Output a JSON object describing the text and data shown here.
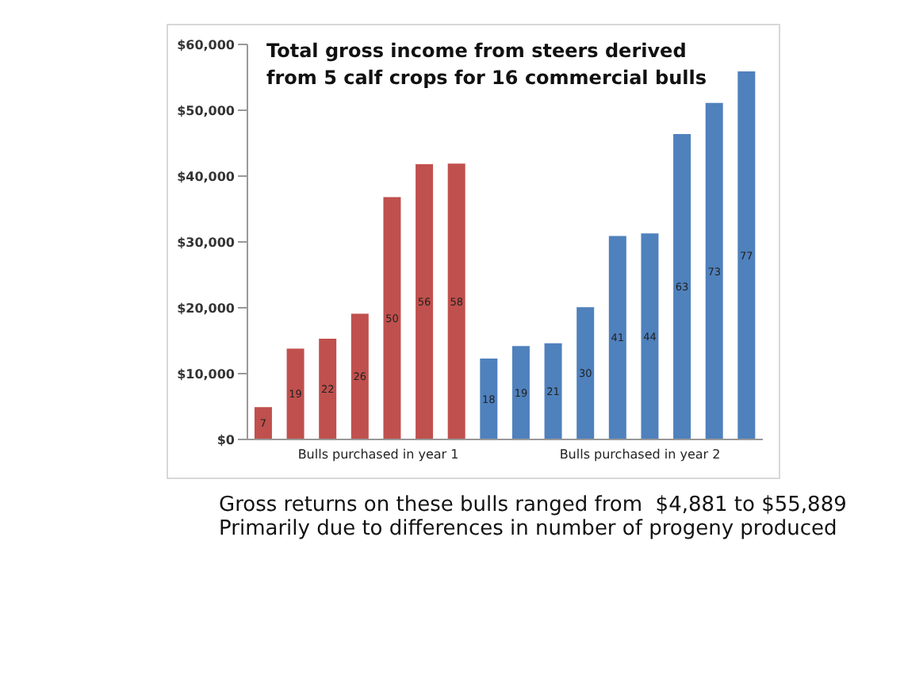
{
  "chart_data": {
    "type": "bar",
    "title": "Total gross income from steers derived from 5 calf crops for 16 commercial bulls",
    "categories": [
      null,
      null,
      null,
      null,
      null,
      null,
      null,
      null,
      null,
      null,
      null,
      null,
      null,
      null,
      null,
      null
    ],
    "values": [
      4900,
      13800,
      15300,
      19100,
      36800,
      41800,
      41900,
      12300,
      14200,
      14600,
      20100,
      30900,
      31300,
      46400,
      51100,
      55900
    ],
    "colors": [
      "#c0504d",
      "#c0504d",
      "#c0504d",
      "#c0504d",
      "#c0504d",
      "#c0504d",
      "#c0504d",
      "#4f81bd",
      "#4f81bd",
      "#4f81bd",
      "#4f81bd",
      "#4f81bd",
      "#4f81bd",
      "#4f81bd",
      "#4f81bd",
      "#4f81bd"
    ],
    "ylim": [
      0,
      60000
    ],
    "yticks": [
      {
        "value": 0,
        "label": "$0"
      },
      {
        "value": 10000,
        "label": "$10,000"
      },
      {
        "value": 20000,
        "label": "$20,000"
      },
      {
        "value": 30000,
        "label": "$30,000"
      },
      {
        "value": 40000,
        "label": "$40,000"
      },
      {
        "value": 50000,
        "label": "$50,000"
      },
      {
        "value": 60000,
        "label": "$60,000"
      }
    ],
    "grid": false,
    "legend": false,
    "annotations": [
      "Bulls purchased in year 1",
      "Bulls purchased in year 2",
      "Gross returns on these bulls ranged from  $4,881 to $55,889",
      "Primarily due to differences in number of progeny produced",
      "7",
      "19",
      "22",
      "26",
      "50",
      "56",
      "58",
      "18",
      "19",
      "21",
      "30",
      "41",
      "44",
      "63",
      "73",
      "77"
    ]
  }
}
